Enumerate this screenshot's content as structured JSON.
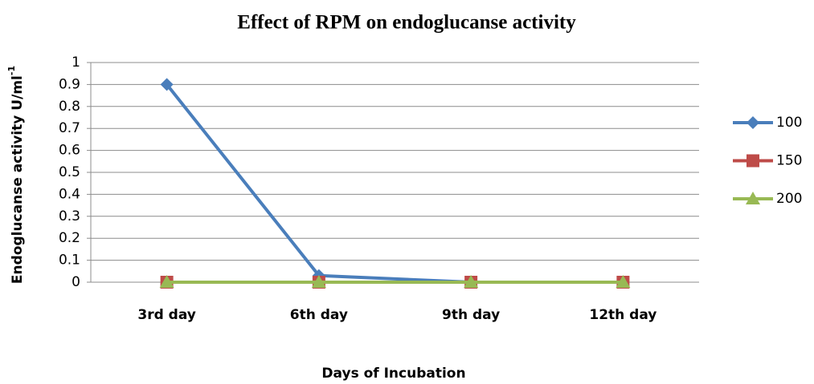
{
  "chart_data": {
    "type": "line",
    "title": "Effect of RPM on endoglucanse activity",
    "y_label": "Endoglucanse activity U/ml",
    "y_label_superscript": "-1",
    "x_label": "Days of Incubation",
    "categories": [
      "3rd day",
      "6th day",
      "9th day",
      "12th day"
    ],
    "series": [
      {
        "name": "100",
        "color": "#4a7ebb",
        "marker": "diamond",
        "values": [
          0.9,
          0.03,
          0,
          0
        ]
      },
      {
        "name": "150",
        "color": "#be4b48",
        "marker": "square",
        "values": [
          0,
          0,
          0,
          0
        ]
      },
      {
        "name": "200",
        "color": "#98b954",
        "marker": "triangle",
        "values": [
          0,
          0,
          0,
          0
        ]
      }
    ],
    "ylim": [
      0,
      1
    ],
    "yticks": [
      0,
      0.1,
      0.2,
      0.3,
      0.4,
      0.5,
      0.6,
      0.7,
      0.8,
      0.9,
      1
    ],
    "grid": true,
    "legend": "right"
  }
}
